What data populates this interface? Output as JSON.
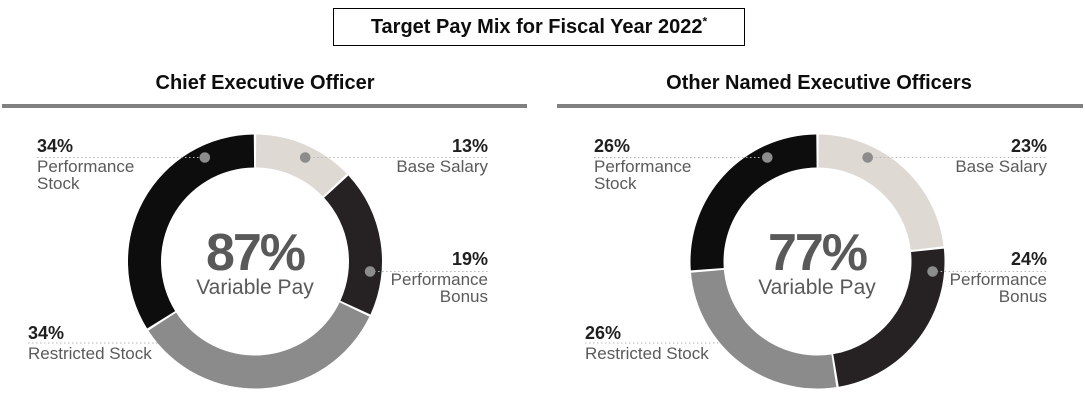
{
  "header": {
    "title": "Target Pay Mix for Fiscal Year 2022",
    "footnote_marker": "*"
  },
  "styles": {
    "divider_color": "#808080",
    "leader_line_color": "#b7b7b7",
    "leader_dot_color": "#8c8c8c",
    "center_text_color": "#595959"
  },
  "chart_data": [
    {
      "type": "pie",
      "subtype": "donut",
      "title": "Chief Executive Officer",
      "center": {
        "value": "87%",
        "label": "Variable Pay"
      },
      "legend_position": "callout-labels",
      "segments": [
        {
          "label": "Base Salary",
          "value": 13,
          "display": "13%",
          "color": "#ded9d3"
        },
        {
          "label": "Performance Bonus",
          "value": 19,
          "display": "19%",
          "color": "#262223"
        },
        {
          "label": "Restricted Stock",
          "value": 34,
          "display": "34%",
          "color": "#8b8b8b"
        },
        {
          "label": "Performance Stock",
          "value": 34,
          "display": "34%",
          "color": "#0d0d0d"
        }
      ]
    },
    {
      "type": "pie",
      "subtype": "donut",
      "title": "Other Named Executive Officers",
      "center": {
        "value": "77%",
        "label": "Variable Pay"
      },
      "legend_position": "callout-labels",
      "segments": [
        {
          "label": "Base Salary",
          "value": 23,
          "display": "23%",
          "color": "#ded9d3"
        },
        {
          "label": "Performance Bonus",
          "value": 24,
          "display": "24%",
          "color": "#262223"
        },
        {
          "label": "Restricted Stock",
          "value": 26,
          "display": "26%",
          "color": "#8b8b8b"
        },
        {
          "label": "Performance Stock",
          "value": 26,
          "display": "26%",
          "color": "#0d0d0d"
        }
      ]
    }
  ]
}
